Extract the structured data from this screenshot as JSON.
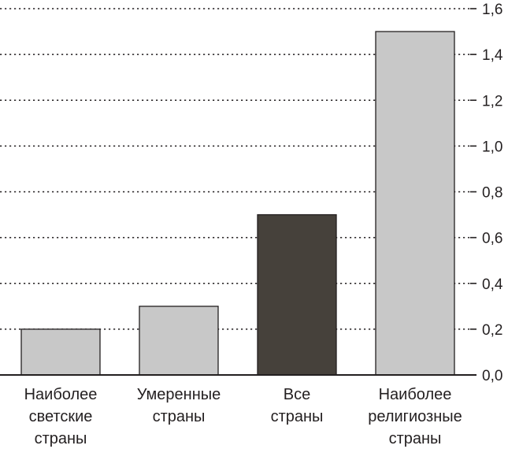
{
  "chart_data": {
    "type": "bar",
    "categories": [
      [
        "Наиболее",
        "светские",
        "страны"
      ],
      [
        "Умеренные",
        "страны"
      ],
      [
        "Все",
        "страны"
      ],
      [
        "Наиболее",
        "религиозные",
        "страны"
      ]
    ],
    "values": [
      0.2,
      0.3,
      0.7,
      1.5
    ],
    "colors": [
      "#c8c8c8",
      "#c8c8c8",
      "#46413b",
      "#c8c8c8"
    ],
    "ylim": [
      0,
      1.6
    ],
    "yticks": [
      {
        "value": 0.0,
        "label": "0,0"
      },
      {
        "value": 0.2,
        "label": "0,2"
      },
      {
        "value": 0.4,
        "label": "0,4"
      },
      {
        "value": 0.6,
        "label": "0,6"
      },
      {
        "value": 0.8,
        "label": "0,8"
      },
      {
        "value": 1.0,
        "label": "1,0"
      },
      {
        "value": 1.2,
        "label": "1,2"
      },
      {
        "value": 1.4,
        "label": "1,4"
      },
      {
        "value": 1.6,
        "label": "1,6"
      }
    ],
    "y_axis_side": "right",
    "grid": "dotted horizontal"
  }
}
